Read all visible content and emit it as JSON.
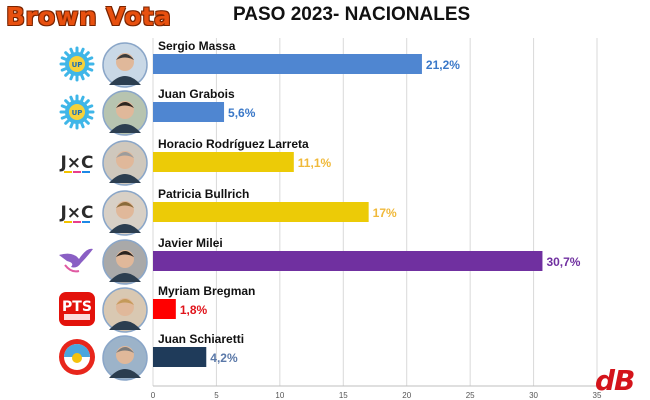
{
  "header": {
    "brand": "Brown Vota",
    "title": "PASO 2023- NACIONALES"
  },
  "footer_logo": "dB",
  "chart_data": {
    "type": "bar",
    "orientation": "horizontal",
    "title": "PASO 2023- NACIONALES",
    "xlabel": "",
    "ylabel": "",
    "xlim": [
      0,
      35
    ],
    "xticks": [
      0,
      5,
      10,
      15,
      20,
      25,
      30,
      35
    ],
    "grid": true,
    "legend": "none",
    "categories": [
      "Sergio Massa",
      "Juan Grabois",
      "Horacio Rodríguez Larreta",
      "Patricia Bullrich",
      "Javier Milei",
      "Myriam Bregman",
      "Juan Schiaretti"
    ],
    "values": [
      21.2,
      5.6,
      11.1,
      17,
      30.7,
      1.8,
      4.2
    ],
    "value_labels": [
      "21,2%",
      "5,6%",
      "11,1%",
      "17%",
      "30,7%",
      "1,8%",
      "4,2%"
    ],
    "bar_colors": [
      "#4f86d1",
      "#4f86d1",
      "#eccb07",
      "#eccb07",
      "#7030a0",
      "#ff0000",
      "#1f3b5a"
    ],
    "label_colors": [
      "#3a78c8",
      "#3a78c8",
      "#f0b93a",
      "#f0b93a",
      "#7030a0",
      "#e0141b",
      "#5a78a8"
    ],
    "party_logos": [
      {
        "icon": "up-sun-icon",
        "text": "UP"
      },
      {
        "icon": "up-sun-icon",
        "text": "UP"
      },
      {
        "icon": "jxc-icon",
        "text": "J×C"
      },
      {
        "icon": "jxc-icon",
        "text": "J×C"
      },
      {
        "icon": "lla-bird-icon",
        "text": ""
      },
      {
        "icon": "pts-logo-icon",
        "text": "PTS"
      },
      {
        "icon": "hacemos-logo-icon",
        "text": ""
      }
    ]
  }
}
